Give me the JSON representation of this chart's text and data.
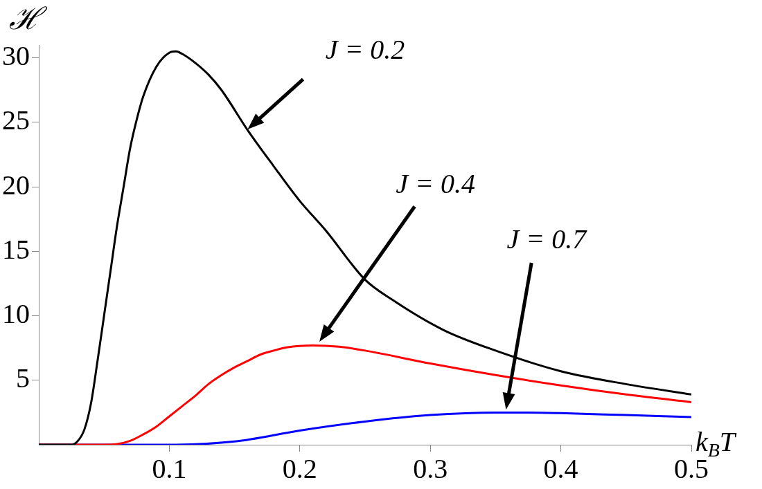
{
  "chart_data": {
    "type": "line",
    "xlabel": "k$_{B}$T",
    "ylabel": "ℋ",
    "xlim": [
      0,
      0.5
    ],
    "ylim": [
      0,
      31
    ],
    "xticks": [
      0.1,
      0.2,
      0.3,
      0.4,
      0.5
    ],
    "yticks": [
      5,
      10,
      15,
      20,
      25,
      30
    ],
    "grid": false,
    "legend": false,
    "marker": "none",
    "line_style": "solid",
    "series": [
      {
        "color": "#000000",
        "x": [
          0,
          0.025,
          0.03,
          0.035,
          0.04,
          0.045,
          0.05,
          0.055,
          0.06,
          0.065,
          0.07,
          0.075,
          0.08,
          0.09,
          0.1,
          0.105,
          0.11,
          0.12,
          0.13,
          0.14,
          0.16,
          0.18,
          0.2,
          0.22,
          0.25,
          0.27,
          0.31,
          0.35,
          0.4,
          0.45,
          0.5
        ],
        "values": [
          0,
          0,
          0.3,
          1.2,
          3.2,
          6.5,
          10,
          13.5,
          17,
          20,
          23,
          25.2,
          27,
          29.3,
          30.4,
          30.5,
          30.3,
          29.6,
          28.7,
          27.5,
          24.4,
          21.6,
          18.9,
          16.6,
          12.8,
          11.3,
          8.9,
          7.3,
          5.7,
          4.7,
          3.9
        ]
      },
      {
        "color": "#ff0000",
        "x": [
          0,
          0.05,
          0.06,
          0.07,
          0.08,
          0.09,
          0.1,
          0.11,
          0.12,
          0.13,
          0.14,
          0.15,
          0.16,
          0.17,
          0.18,
          0.19,
          0.21,
          0.23,
          0.25,
          0.3,
          0.35,
          0.4,
          0.45,
          0.5
        ],
        "values": [
          0,
          0,
          0.05,
          0.3,
          0.8,
          1.4,
          2.2,
          3,
          3.8,
          4.7,
          5.4,
          6,
          6.5,
          7,
          7.3,
          7.55,
          7.7,
          7.6,
          7.3,
          6.3,
          5.4,
          4.6,
          3.9,
          3.3
        ]
      },
      {
        "color": "#0000ff",
        "x": [
          0,
          0.1,
          0.15,
          0.2,
          0.25,
          0.3,
          0.35,
          0.37,
          0.4,
          0.45,
          0.5
        ],
        "values": [
          0,
          0,
          0.25,
          1.1,
          1.8,
          2.3,
          2.5,
          2.5,
          2.45,
          2.3,
          2.15
        ]
      }
    ],
    "annotations": [
      "J = 0.2",
      "J = 0.4",
      "J = 0.7"
    ]
  }
}
